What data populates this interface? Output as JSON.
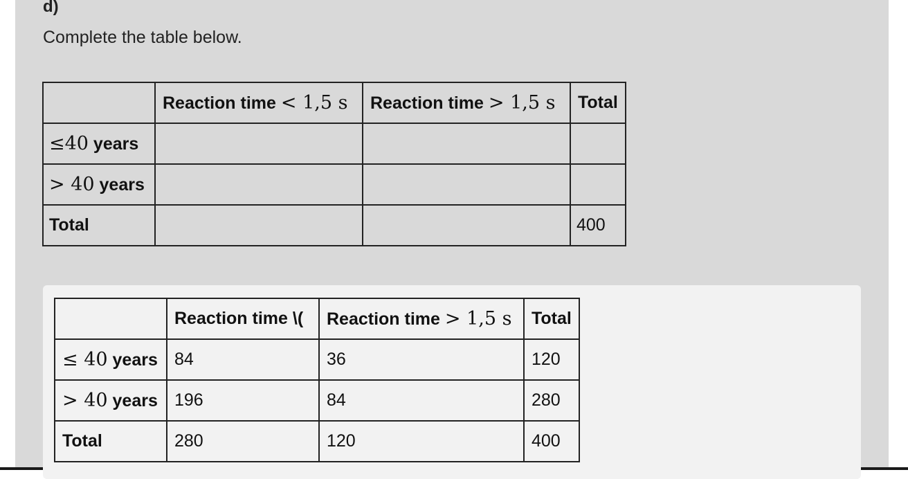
{
  "question": {
    "label": "d)",
    "instruction": "Complete the table below."
  },
  "question_table": {
    "headers": {
      "blank": "",
      "col1_text": "Reaction time ",
      "col1_math": "< 1,5 s",
      "col2_text": "Reaction time ",
      "col2_math": "> 1,5 s",
      "col3": "Total"
    },
    "rows": [
      {
        "label_math": "≤40",
        "label_text": " years",
        "c1": "",
        "c2": "",
        "total": ""
      },
      {
        "label_math": "> 40",
        "label_text": " years",
        "c1": "",
        "c2": "",
        "total": ""
      },
      {
        "label_text": "Total",
        "c1": "",
        "c2": "",
        "total": "400"
      }
    ]
  },
  "answer_table": {
    "headers": {
      "blank": "",
      "col1_text": "Reaction time \\(",
      "col2_text": "Reaction time ",
      "col2_math": "> 1,5 s",
      "col3": "Total"
    },
    "rows": [
      {
        "label_math": "≤ 40",
        "label_text": " years",
        "c1": "84",
        "c2": "36",
        "total": "120"
      },
      {
        "label_math": "> 40",
        "label_text": " years",
        "c1": "196",
        "c2": "84",
        "total": "280"
      },
      {
        "label_text": "Total",
        "c1": "280",
        "c2": "120",
        "total": "400"
      }
    ]
  }
}
